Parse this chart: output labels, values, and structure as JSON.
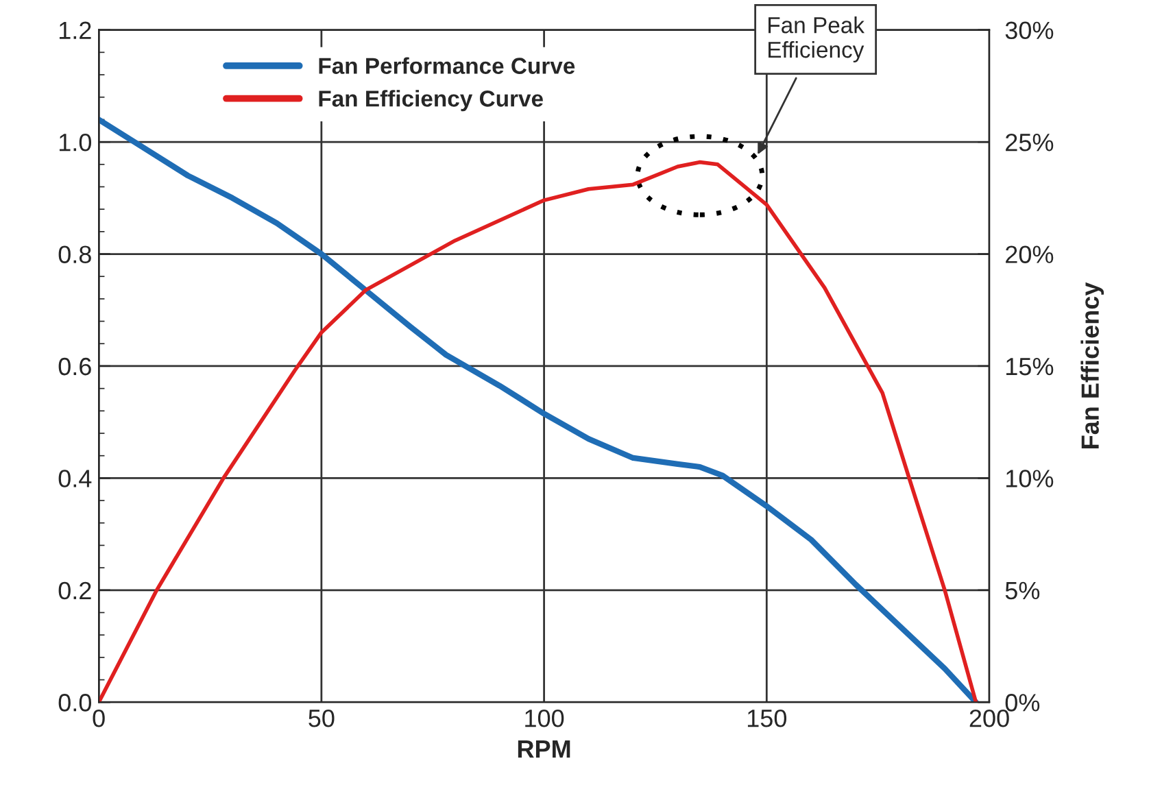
{
  "chart_data": {
    "type": "line",
    "xlabel": "RPM",
    "y2label": "Fan Efficiency",
    "x": [
      0,
      10,
      20,
      30,
      40,
      50,
      60,
      70,
      78,
      90,
      100,
      110,
      120,
      130,
      135,
      140,
      150,
      160,
      170,
      180,
      190,
      197
    ],
    "series": [
      {
        "name": "Fan Performance Curve",
        "color": "#1f6db5",
        "values": [
          1.04,
          0.99,
          0.94,
          0.9,
          0.855,
          0.8,
          0.735,
          0.67,
          0.62,
          0.565,
          0.515,
          0.47,
          0.436,
          0.425,
          0.42,
          0.405,
          0.35,
          0.29,
          0.21,
          0.135,
          0.06,
          0.0
        ]
      },
      {
        "name": "Fan Efficiency Curve",
        "color": "#e02020",
        "axis": "y2",
        "x": [
          0,
          13,
          28,
          44,
          50,
          60,
          80,
          100,
          110,
          120,
          130,
          135,
          139,
          150,
          163,
          176,
          182,
          190,
          197
        ],
        "values": [
          0,
          5,
          10,
          14.8,
          16.5,
          18.4,
          20.6,
          22.4,
          22.9,
          23.1,
          23.9,
          24.1,
          24.0,
          22.2,
          18.5,
          13.8,
          10,
          5,
          0
        ]
      }
    ],
    "xlim": [
      0,
      200
    ],
    "xticks": [
      0,
      50,
      100,
      150,
      200
    ],
    "ylim": [
      0,
      1.2
    ],
    "yticks": [
      {
        "value": 0,
        "label": "0.0"
      },
      {
        "value": 0.2,
        "label": "0.2"
      },
      {
        "value": 0.4,
        "label": "0.4"
      },
      {
        "value": 0.6,
        "label": "0.6"
      },
      {
        "value": 0.8,
        "label": "0.8"
      },
      {
        "value": 1.0,
        "label": "1.0"
      },
      {
        "value": 1.2,
        "label": "1.2"
      }
    ],
    "y2lim": [
      0,
      30
    ],
    "y2ticks": [
      {
        "value": 0,
        "label": "0%"
      },
      {
        "value": 5,
        "label": "5%"
      },
      {
        "value": 10,
        "label": "10%"
      },
      {
        "value": 15,
        "label": "15%"
      },
      {
        "value": 20,
        "label": "20%"
      },
      {
        "value": 25,
        "label": "25%"
      },
      {
        "value": 30,
        "label": "30%"
      }
    ],
    "annotations": [
      "Fan Peak\nEfficiency"
    ],
    "grid": true,
    "legend": "top left",
    "line_style": "solid",
    "marker": "none"
  }
}
